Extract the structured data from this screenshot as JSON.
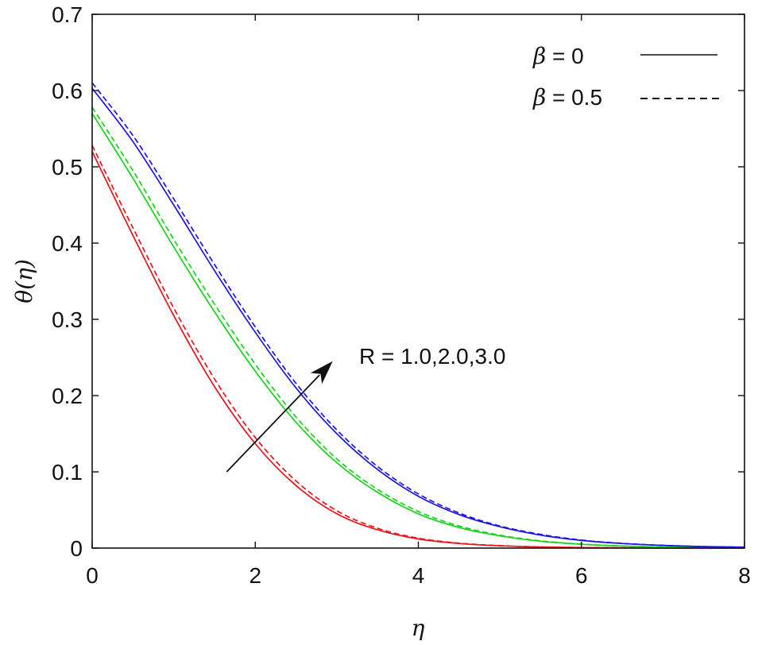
{
  "chart_data": {
    "type": "line",
    "title": "",
    "xlabel": "η",
    "ylabel": "θ(η)",
    "xlim": [
      0,
      8
    ],
    "ylim": [
      0,
      0.7
    ],
    "xticks": [
      "0",
      "2",
      "4",
      "6",
      "8"
    ],
    "yticks": [
      "0",
      "0.1",
      "0.2",
      "0.3",
      "0.4",
      "0.5",
      "0.6",
      "0.7"
    ],
    "grid": false,
    "legend_position": "top-right",
    "legend": [
      {
        "symbol": "β",
        "text": " = 0",
        "style": "solid"
      },
      {
        "symbol": "β",
        "text": " = 0.5",
        "style": "dashed"
      }
    ],
    "annotation": {
      "text": "R = 1.0,2.0,3.0",
      "arrow_from": [
        1.65,
        0.1
      ],
      "arrow_to": [
        2.95,
        0.245
      ]
    },
    "x": [
      0,
      0.5,
      1,
      1.5,
      2,
      2.5,
      3,
      3.5,
      4,
      4.5,
      5,
      5.5,
      6,
      6.5,
      7,
      7.5,
      8
    ],
    "series": [
      {
        "R": "1.0",
        "beta": "0",
        "color": "#e8141a",
        "dash": false,
        "values": [
          0.52,
          0.41,
          0.305,
          0.212,
          0.137,
          0.082,
          0.045,
          0.024,
          0.012,
          0.006,
          0.003,
          0.0015,
          0.0007,
          0.0003,
          0.0001,
          0.0,
          0.0
        ]
      },
      {
        "R": "1.0",
        "beta": "0.5",
        "color": "#e8141a",
        "dash": true,
        "values": [
          0.528,
          0.42,
          0.315,
          0.222,
          0.145,
          0.088,
          0.049,
          0.026,
          0.013,
          0.0065,
          0.0032,
          0.0015,
          0.0007,
          0.0003,
          0.0001,
          0.0,
          0.0
        ]
      },
      {
        "R": "2.0",
        "beta": "0",
        "color": "#17d41a",
        "dash": false,
        "values": [
          0.57,
          0.485,
          0.395,
          0.31,
          0.232,
          0.165,
          0.112,
          0.073,
          0.045,
          0.027,
          0.016,
          0.009,
          0.005,
          0.0027,
          0.0014,
          0.0007,
          0.0003
        ]
      },
      {
        "R": "2.0",
        "beta": "0.5",
        "color": "#17d41a",
        "dash": true,
        "values": [
          0.578,
          0.495,
          0.405,
          0.32,
          0.241,
          0.172,
          0.117,
          0.077,
          0.048,
          0.029,
          0.017,
          0.0095,
          0.0052,
          0.0028,
          0.0015,
          0.0007,
          0.0003
        ]
      },
      {
        "R": "3.0",
        "beta": "0",
        "color": "#1a14e6",
        "dash": false,
        "values": [
          0.603,
          0.533,
          0.45,
          0.364,
          0.283,
          0.21,
          0.15,
          0.103,
          0.068,
          0.044,
          0.028,
          0.017,
          0.01,
          0.006,
          0.0035,
          0.002,
          0.0012
        ]
      },
      {
        "R": "3.0",
        "beta": "0.5",
        "color": "#1a14e6",
        "dash": true,
        "values": [
          0.61,
          0.541,
          0.458,
          0.372,
          0.29,
          0.216,
          0.155,
          0.107,
          0.071,
          0.046,
          0.029,
          0.018,
          0.0105,
          0.0062,
          0.0036,
          0.002,
          0.0012
        ]
      }
    ]
  }
}
